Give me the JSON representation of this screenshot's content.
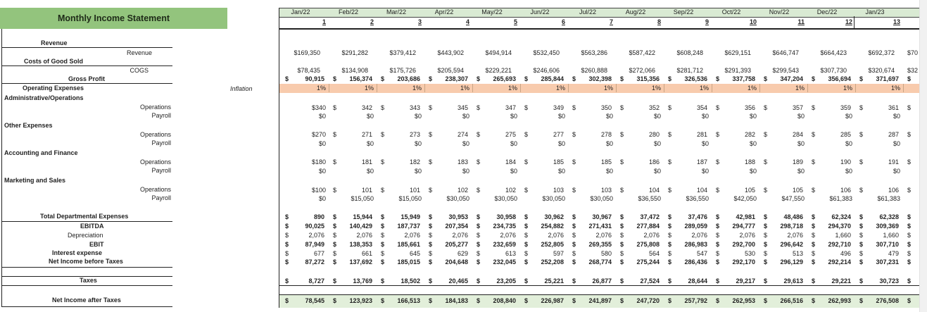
{
  "title": "Monthly Income Statement",
  "inflation_label": "Inflation",
  "labels": {
    "revenue_section": "Revenue",
    "revenue": "Revenue",
    "cogs_section": "Costs of Good Sold",
    "cogs": "COGS",
    "gross_profit": "Gross Profit",
    "operating_expenses": "Operating Expenses",
    "admin": "Administrative/Operations",
    "other": "Other Expenses",
    "accounting": "Accounting and Finance",
    "marketing": "Marketing and Sales",
    "operations": "Operations",
    "payroll": "Payroll",
    "total_dept": "Total  Departmental Expenses",
    "ebitda": "EBITDA",
    "depreciation": "Depreciation",
    "ebit": "EBIT",
    "interest": "Interest expense",
    "nibt": "Net Income before Taxes",
    "taxes": "Taxes",
    "niat": "Net Income after Taxes"
  },
  "columns": [
    {
      "month": "Jan/22",
      "num": "1"
    },
    {
      "month": "Feb/22",
      "num": "2"
    },
    {
      "month": "Mar/22",
      "num": "3"
    },
    {
      "month": "Apr/22",
      "num": "4"
    },
    {
      "month": "May/22",
      "num": "5"
    },
    {
      "month": "Jun/22",
      "num": "6"
    },
    {
      "month": "Jul/22",
      "num": "7"
    },
    {
      "month": "Aug/22",
      "num": "8"
    },
    {
      "month": "Sep/22",
      "num": "9"
    },
    {
      "month": "Oct/22",
      "num": "10"
    },
    {
      "month": "Nov/22",
      "num": "11"
    },
    {
      "month": "Dec/22",
      "num": "12"
    },
    {
      "month": "Jan/23",
      "num": "13"
    }
  ],
  "rows": {
    "revenue": [
      "$169,350",
      "$291,282",
      "$379,412",
      "$443,902",
      "$494,914",
      "$532,450",
      "$563,286",
      "$587,422",
      "$608,248",
      "$629,151",
      "$646,747",
      "$664,423",
      "$692,372",
      "$70"
    ],
    "cogs": [
      "$78,435",
      "$134,908",
      "$175,726",
      "$205,594",
      "$229,221",
      "$246,606",
      "$260,888",
      "$272,066",
      "$281,712",
      "$291,393",
      "$299,543",
      "$307,730",
      "$320,674",
      "$32"
    ],
    "gross_profit": [
      "90,915",
      "156,374",
      "203,686",
      "238,307",
      "265,693",
      "285,844",
      "302,398",
      "315,356",
      "326,536",
      "337,758",
      "347,204",
      "356,694",
      "371,697",
      ""
    ],
    "inflation": [
      "1%",
      "1%",
      "1%",
      "1%",
      "1%",
      "1%",
      "1%",
      "1%",
      "1%",
      "1%",
      "1%",
      "1%",
      "1%"
    ],
    "admin_ops": [
      "$340",
      "342",
      "343",
      "345",
      "347",
      "349",
      "350",
      "352",
      "354",
      "356",
      "357",
      "359",
      "361",
      ""
    ],
    "admin_payroll": [
      "$0",
      "$0",
      "$0",
      "$0",
      "$0",
      "$0",
      "$0",
      "$0",
      "$0",
      "$0",
      "$0",
      "$0",
      "$0"
    ],
    "other_ops": [
      "$270",
      "271",
      "273",
      "274",
      "275",
      "277",
      "278",
      "280",
      "281",
      "282",
      "284",
      "285",
      "287",
      ""
    ],
    "other_payroll": [
      "$0",
      "$0",
      "$0",
      "$0",
      "$0",
      "$0",
      "$0",
      "$0",
      "$0",
      "$0",
      "$0",
      "$0",
      "$0"
    ],
    "acct_ops": [
      "$180",
      "181",
      "182",
      "183",
      "184",
      "185",
      "185",
      "186",
      "187",
      "188",
      "189",
      "190",
      "191",
      ""
    ],
    "acct_payroll": [
      "$0",
      "$0",
      "$0",
      "$0",
      "$0",
      "$0",
      "$0",
      "$0",
      "$0",
      "$0",
      "$0",
      "$0",
      "$0"
    ],
    "mkt_ops": [
      "$100",
      "101",
      "101",
      "102",
      "102",
      "103",
      "103",
      "104",
      "104",
      "105",
      "105",
      "106",
      "106",
      ""
    ],
    "mkt_payroll": [
      "$0",
      "$15,050",
      "$15,050",
      "$30,050",
      "$30,050",
      "$30,050",
      "$30,050",
      "$36,550",
      "$36,550",
      "$42,050",
      "$47,550",
      "$61,383",
      "$61,383"
    ],
    "total_dept": [
      "890",
      "15,944",
      "15,949",
      "30,953",
      "30,958",
      "30,962",
      "30,967",
      "37,472",
      "37,476",
      "42,981",
      "48,486",
      "62,324",
      "62,328",
      ""
    ],
    "ebitda": [
      "90,025",
      "140,429",
      "187,737",
      "207,354",
      "234,735",
      "254,882",
      "271,431",
      "277,884",
      "289,059",
      "294,777",
      "298,718",
      "294,370",
      "309,369",
      ""
    ],
    "depreciation": [
      "2,076",
      "2,076",
      "2,076",
      "2,076",
      "2,076",
      "2,076",
      "2,076",
      "2,076",
      "2,076",
      "2,076",
      "2,076",
      "1,660",
      "1,660",
      ""
    ],
    "ebit": [
      "87,949",
      "138,353",
      "185,661",
      "205,277",
      "232,659",
      "252,805",
      "269,355",
      "275,808",
      "286,983",
      "292,700",
      "296,642",
      "292,710",
      "307,710",
      ""
    ],
    "interest": [
      "677",
      "661",
      "645",
      "629",
      "613",
      "597",
      "580",
      "564",
      "547",
      "530",
      "513",
      "496",
      "479",
      ""
    ],
    "nibt": [
      "87,272",
      "137,692",
      "185,015",
      "204,648",
      "232,045",
      "252,208",
      "268,774",
      "275,244",
      "286,436",
      "292,170",
      "296,129",
      "292,214",
      "307,231",
      ""
    ],
    "taxes": [
      "8,727",
      "13,769",
      "18,502",
      "20,465",
      "23,205",
      "25,221",
      "26,877",
      "27,524",
      "28,644",
      "29,217",
      "29,613",
      "29,221",
      "30,723",
      ""
    ],
    "niat": [
      "78,545",
      "123,923",
      "166,513",
      "184,183",
      "208,840",
      "226,987",
      "241,897",
      "247,720",
      "257,792",
      "262,953",
      "266,516",
      "262,993",
      "276,508",
      ""
    ]
  },
  "colors": {
    "banner": "#93c47d",
    "header": "#d9ead3",
    "inflation_row": "#f8cbad",
    "net_income_row": "#e2efda"
  }
}
